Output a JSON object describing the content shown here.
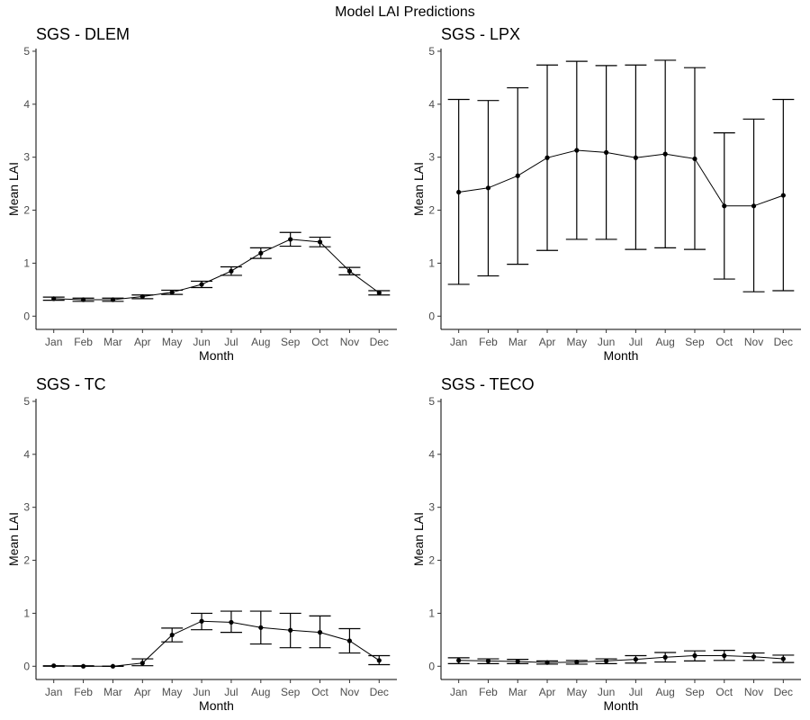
{
  "figure": {
    "title": "Model LAI Predictions"
  },
  "chart_data": [
    {
      "type": "line",
      "title": "SGS - DLEM",
      "xlabel": "Month",
      "ylabel": "Mean LAI",
      "categories": [
        "Jan",
        "Feb",
        "Mar",
        "Apr",
        "May",
        "Jun",
        "Jul",
        "Aug",
        "Sep",
        "Oct",
        "Nov",
        "Dec"
      ],
      "ylim": [
        -0.25,
        5.05
      ],
      "yticks": [
        0,
        1,
        2,
        3,
        4,
        5
      ],
      "error_bars": true,
      "values": [
        0.33,
        0.31,
        0.31,
        0.37,
        0.45,
        0.6,
        0.85,
        1.19,
        1.45,
        1.4,
        0.85,
        0.44
      ],
      "lower": [
        0.3,
        0.28,
        0.28,
        0.33,
        0.41,
        0.54,
        0.77,
        1.09,
        1.32,
        1.31,
        0.78,
        0.4
      ],
      "upper": [
        0.36,
        0.34,
        0.34,
        0.4,
        0.49,
        0.66,
        0.93,
        1.29,
        1.58,
        1.49,
        0.92,
        0.48
      ]
    },
    {
      "type": "line",
      "title": "SGS - LPX",
      "xlabel": "Month",
      "ylabel": "Mean LAI",
      "categories": [
        "Jan",
        "Feb",
        "Mar",
        "Apr",
        "May",
        "Jun",
        "Jul",
        "Aug",
        "Sep",
        "Oct",
        "Nov",
        "Dec"
      ],
      "ylim": [
        -0.25,
        5.05
      ],
      "yticks": [
        0,
        1,
        2,
        3,
        4,
        5
      ],
      "error_bars": true,
      "values": [
        2.34,
        2.42,
        2.65,
        2.99,
        3.13,
        3.09,
        2.99,
        3.06,
        2.97,
        2.08,
        2.08,
        2.28
      ],
      "lower": [
        0.6,
        0.76,
        0.98,
        1.24,
        1.45,
        1.45,
        1.26,
        1.29,
        1.26,
        0.7,
        0.46,
        0.48
      ],
      "upper": [
        4.09,
        4.07,
        4.31,
        4.74,
        4.81,
        4.73,
        4.74,
        4.83,
        4.69,
        3.46,
        3.72,
        4.09
      ]
    },
    {
      "type": "line",
      "title": "SGS - TC",
      "xlabel": "Month",
      "ylabel": "Mean LAI",
      "categories": [
        "Jan",
        "Feb",
        "Mar",
        "Apr",
        "May",
        "Jun",
        "Jul",
        "Aug",
        "Sep",
        "Oct",
        "Nov",
        "Dec"
      ],
      "ylim": [
        -0.25,
        5.05
      ],
      "yticks": [
        0,
        1,
        2,
        3,
        4,
        5
      ],
      "error_bars": true,
      "values": [
        0.01,
        0.0,
        0.0,
        0.06,
        0.59,
        0.85,
        0.83,
        0.73,
        0.68,
        0.64,
        0.48,
        0.11
      ],
      "lower": [
        0.0,
        0.0,
        0.0,
        0.01,
        0.46,
        0.69,
        0.64,
        0.42,
        0.35,
        0.35,
        0.25,
        0.03
      ],
      "upper": [
        0.01,
        0.01,
        0.0,
        0.14,
        0.72,
        1.0,
        1.04,
        1.04,
        1.0,
        0.95,
        0.71,
        0.2
      ]
    },
    {
      "type": "line",
      "title": "SGS - TECO",
      "xlabel": "Month",
      "ylabel": "Mean LAI",
      "categories": [
        "Jan",
        "Feb",
        "Mar",
        "Apr",
        "May",
        "Jun",
        "Jul",
        "Aug",
        "Sep",
        "Oct",
        "Nov",
        "Dec"
      ],
      "ylim": [
        -0.25,
        5.05
      ],
      "yticks": [
        0,
        1,
        2,
        3,
        4,
        5
      ],
      "error_bars": true,
      "values": [
        0.11,
        0.1,
        0.09,
        0.07,
        0.08,
        0.1,
        0.13,
        0.17,
        0.2,
        0.2,
        0.18,
        0.14
      ],
      "lower": [
        0.05,
        0.05,
        0.05,
        0.04,
        0.04,
        0.05,
        0.06,
        0.08,
        0.1,
        0.11,
        0.11,
        0.07
      ],
      "upper": [
        0.16,
        0.14,
        0.13,
        0.1,
        0.11,
        0.14,
        0.2,
        0.26,
        0.29,
        0.3,
        0.25,
        0.21
      ]
    }
  ]
}
